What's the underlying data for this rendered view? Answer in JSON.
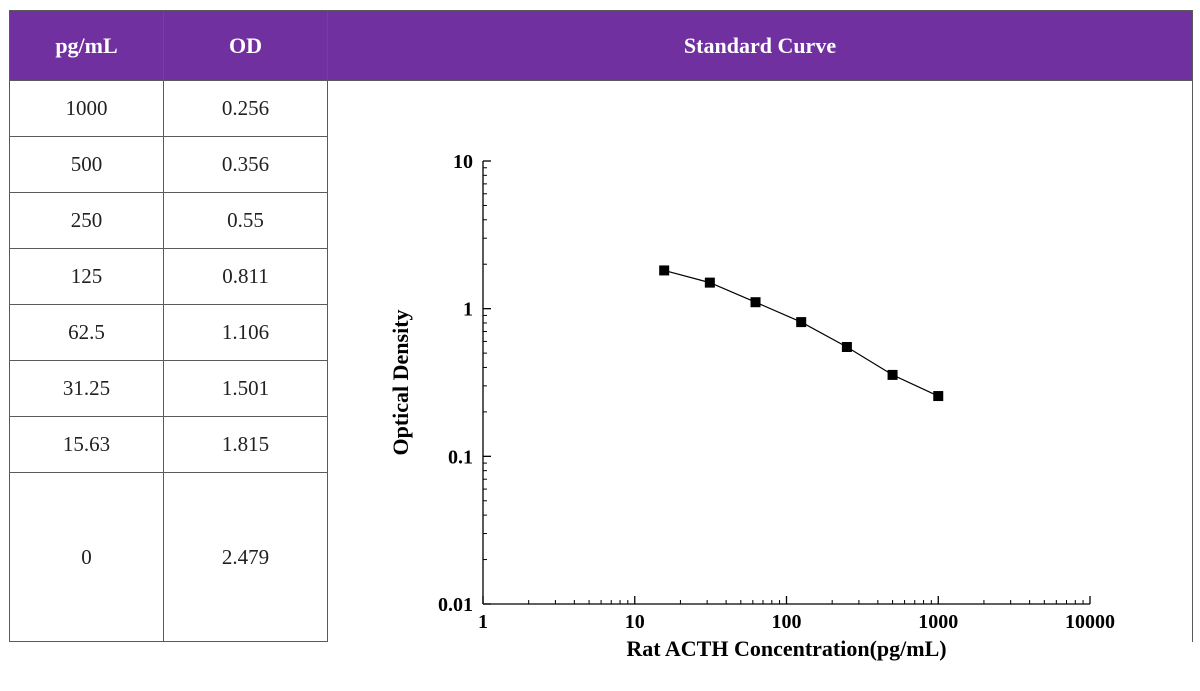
{
  "table": {
    "headers": {
      "conc": "pg/mL",
      "od": "OD",
      "curve": "Standard Curve"
    },
    "rows": [
      {
        "conc": "1000",
        "od": "0.256"
      },
      {
        "conc": "500",
        "od": "0.356"
      },
      {
        "conc": "250",
        "od": "0.55"
      },
      {
        "conc": "125",
        "od": "0.811"
      },
      {
        "conc": "62.5",
        "od": "1.106"
      },
      {
        "conc": "31.25",
        "od": "1.501"
      },
      {
        "conc": "15.63",
        "od": "1.815"
      },
      {
        "conc": "0",
        "od": "2.479"
      }
    ]
  },
  "colors": {
    "header_bg": "#7030a0",
    "header_text": "#ffffff",
    "series": "#000000"
  },
  "chart_data": {
    "type": "scatter",
    "title": "",
    "xlabel": "Rat ACTH Concentration(pg/mL)",
    "ylabel": "Optical Density",
    "xscale": "log",
    "yscale": "log",
    "xlim": [
      1,
      10000
    ],
    "ylim": [
      0.01,
      10
    ],
    "xticks": [
      1,
      10,
      100,
      1000,
      10000
    ],
    "xtick_labels": [
      "1",
      "10",
      "100",
      "1000",
      "10000"
    ],
    "yticks": [
      0.01,
      0.1,
      1,
      10
    ],
    "ytick_labels": [
      "0.01",
      "0.1",
      "1",
      "10"
    ],
    "grid": false,
    "marker": "square",
    "connect_points": true,
    "series": [
      {
        "x": [
          15.63,
          31.25,
          62.5,
          125,
          250,
          500,
          1000
        ],
        "y": [
          1.815,
          1.501,
          1.106,
          0.811,
          0.55,
          0.356,
          0.256
        ]
      }
    ]
  }
}
